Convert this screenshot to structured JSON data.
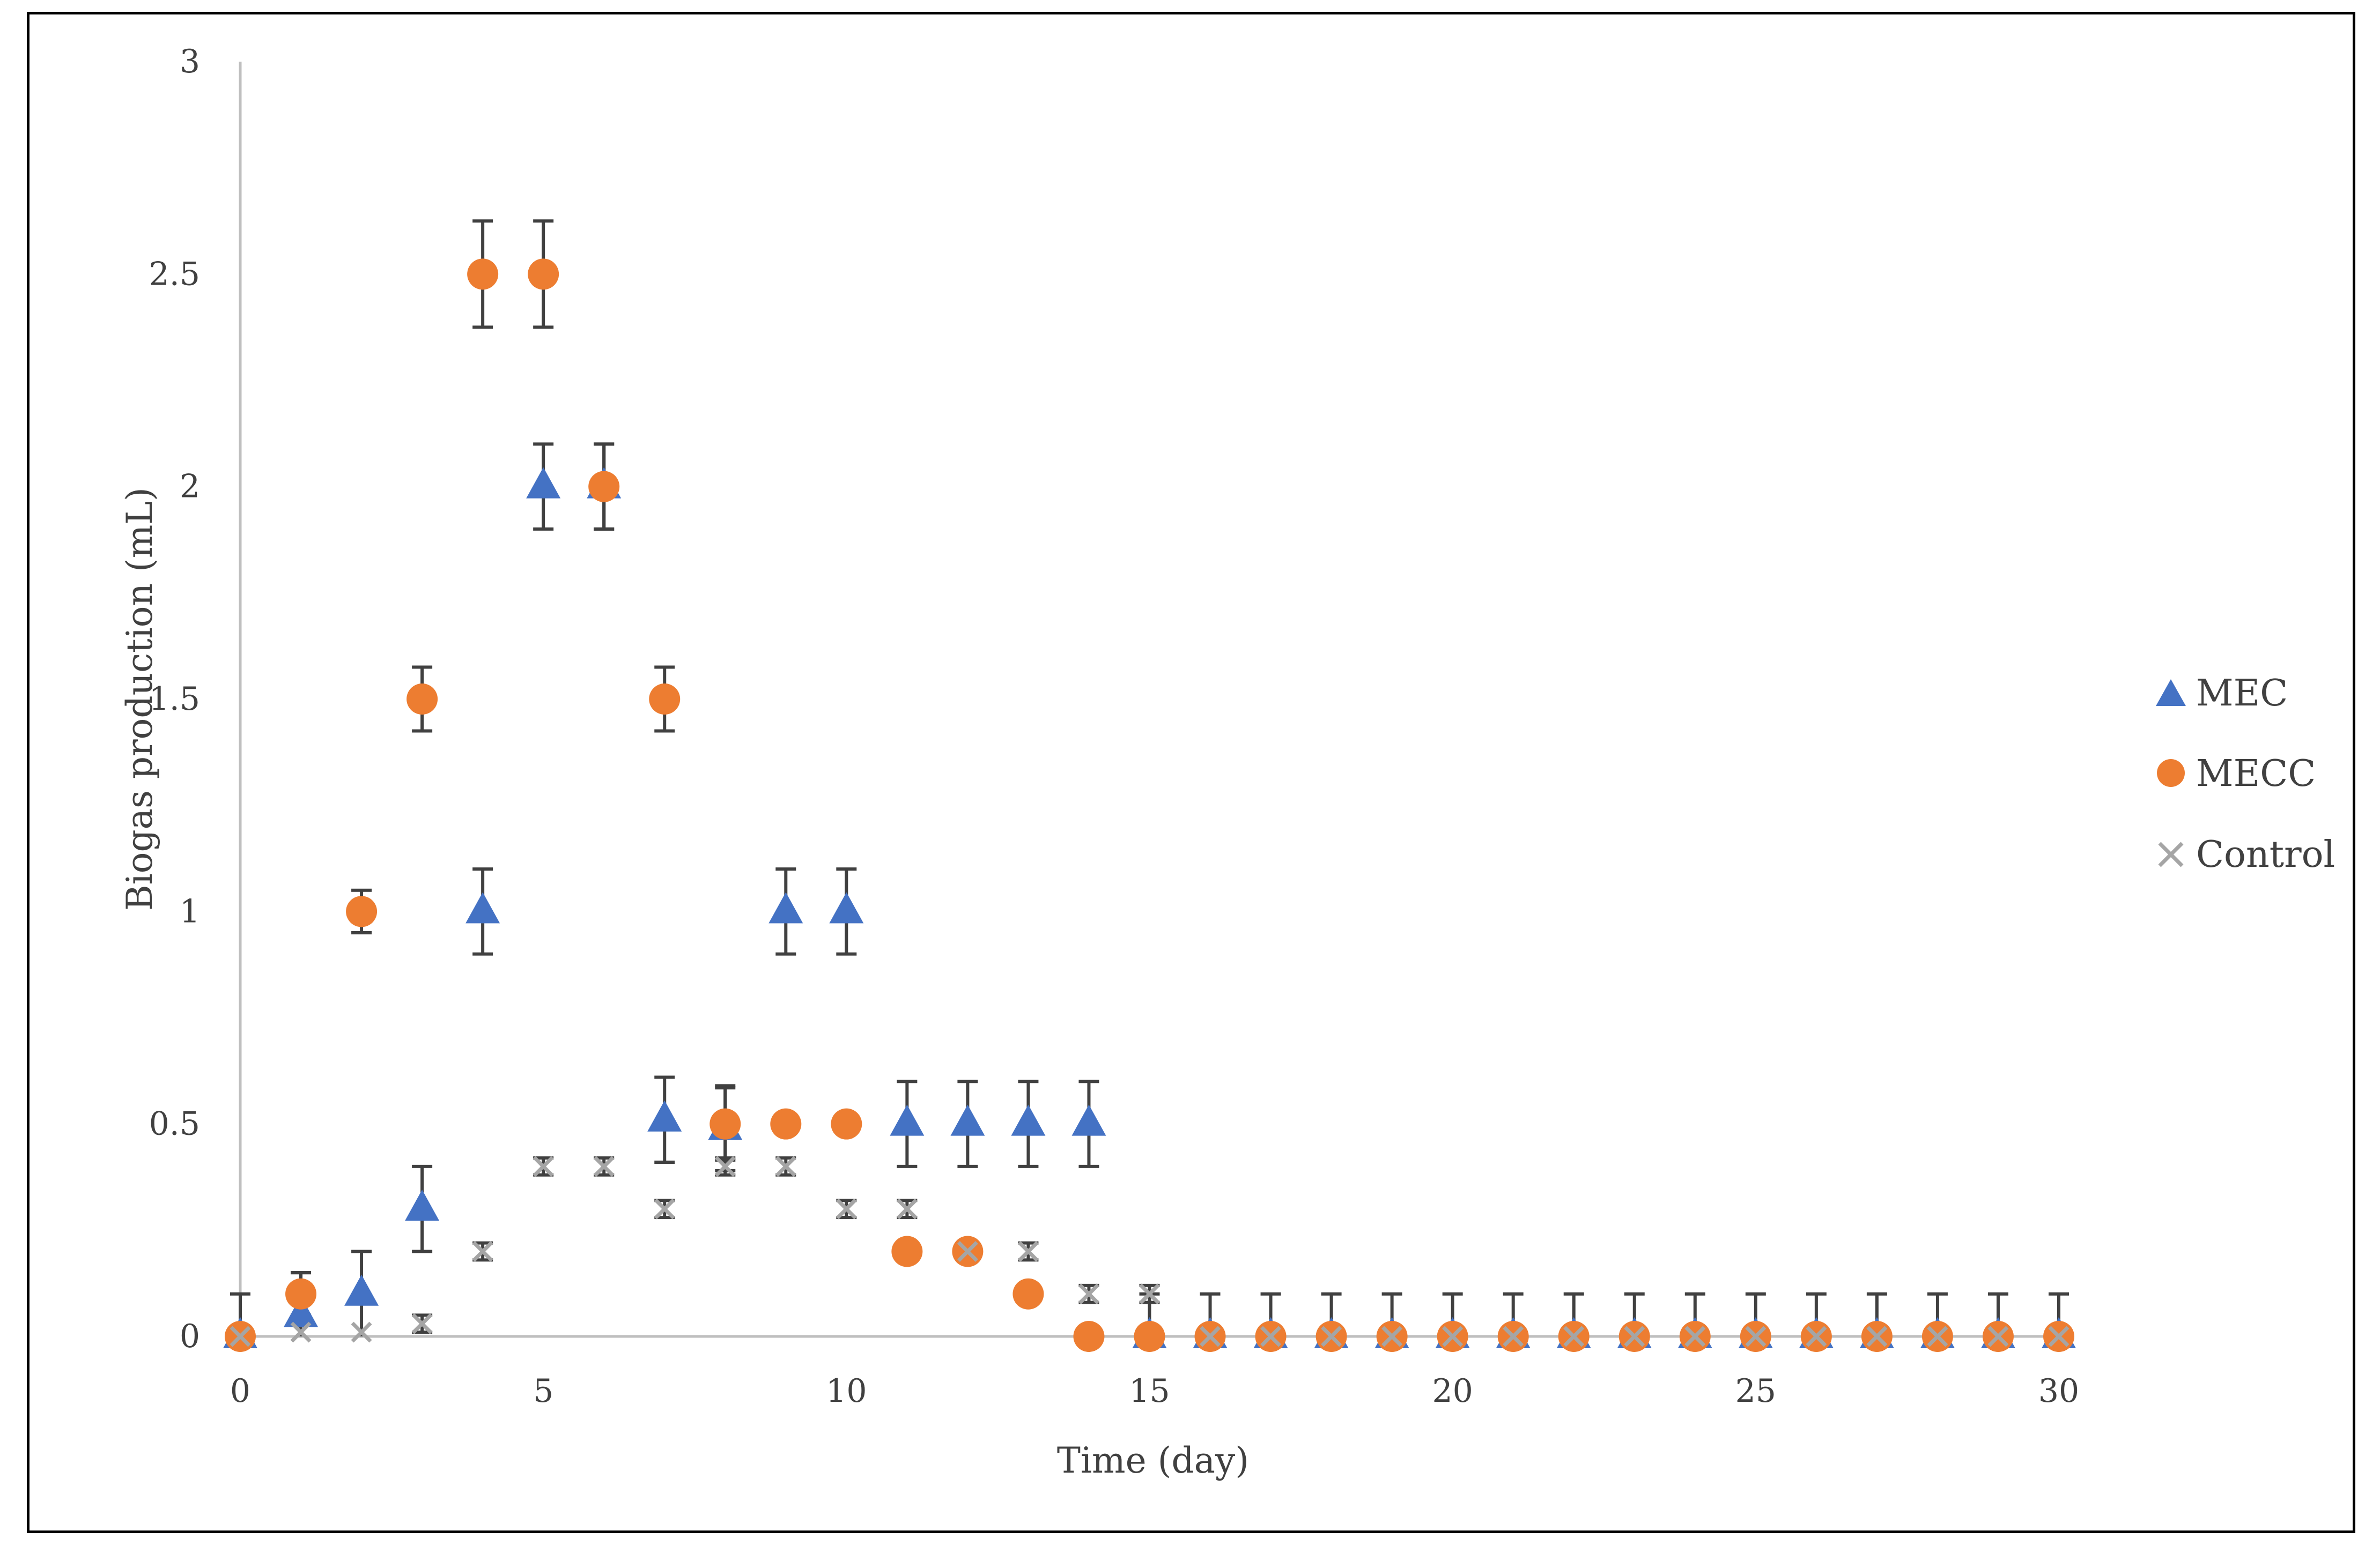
{
  "chart_data": {
    "type": "scatter",
    "title": "",
    "xlabel": "Time (day)",
    "ylabel": "Biogas production (mL)",
    "xlim": [
      0,
      30
    ],
    "ylim": [
      0,
      3
    ],
    "x_ticks": [
      0,
      5,
      10,
      15,
      20,
      25,
      30
    ],
    "y_ticks": [
      0,
      0.5,
      1,
      1.5,
      2,
      2.5,
      3
    ],
    "y_tick_labels": [
      "0",
      "0.5",
      "1",
      "1.5",
      "2",
      "2.5",
      "3"
    ],
    "grid": false,
    "legend_position": "right",
    "colors": {
      "MEC": "#4472C4",
      "MECC": "#ED7D31",
      "Control": "#A5A5A5",
      "axis": "#BFBFBF",
      "error_bar": "#404040"
    },
    "series": [
      {
        "name": "MEC",
        "marker": "triangle",
        "x": [
          0,
          1,
          2,
          3,
          4,
          5,
          6,
          7,
          8,
          9,
          10,
          11,
          12,
          13,
          14,
          15,
          16,
          17,
          18,
          19,
          20,
          21,
          22,
          23,
          24,
          25,
          26,
          27,
          28,
          29,
          30
        ],
        "values": [
          0,
          0.05,
          0.1,
          0.3,
          1,
          2,
          2,
          0.51,
          0.49,
          1,
          1,
          0.5,
          0.5,
          0.5,
          0.5,
          0,
          0,
          0,
          0,
          0,
          0,
          0,
          0,
          0,
          0,
          0,
          0,
          0,
          0,
          0,
          0
        ],
        "error": [
          0.1,
          0.1,
          0.1,
          0.1,
          0.1,
          0.1,
          0.1,
          0.1,
          0.1,
          0.1,
          0.1,
          0.1,
          0.1,
          0.1,
          0.1,
          0.1,
          0.1,
          0.1,
          0.1,
          0.1,
          0.1,
          0.1,
          0.1,
          0.1,
          0.1,
          0.1,
          0.1,
          0.1,
          0.1,
          0.1,
          0.1
        ]
      },
      {
        "name": "MECC",
        "marker": "circle",
        "x": [
          0,
          1,
          2,
          3,
          4,
          5,
          6,
          7,
          8,
          9,
          10,
          11,
          12,
          13,
          14,
          15,
          16,
          17,
          18,
          19,
          20,
          21,
          22,
          23,
          24,
          25,
          26,
          27,
          28,
          29,
          30
        ],
        "values": [
          0,
          0.1,
          1,
          1.5,
          2.5,
          2.5,
          2,
          1.5,
          0.5,
          0.5,
          0.5,
          0.2,
          0.2,
          0.1,
          0,
          0,
          0,
          0,
          0,
          0,
          0,
          0,
          0,
          0,
          0,
          0,
          0,
          0,
          0,
          0,
          0
        ],
        "error": [
          0,
          0.05,
          0.05,
          0.075,
          0.125,
          0.125,
          0.1,
          0.075,
          0.085,
          0,
          0,
          0,
          0,
          0,
          0,
          0,
          0,
          0,
          0,
          0,
          0,
          0,
          0,
          0,
          0,
          0,
          0,
          0,
          0,
          0,
          0
        ]
      },
      {
        "name": "Control",
        "marker": "x",
        "x": [
          0,
          1,
          2,
          3,
          4,
          5,
          6,
          7,
          8,
          9,
          10,
          11,
          12,
          13,
          14,
          15,
          16,
          17,
          18,
          19,
          20,
          21,
          22,
          23,
          24,
          25,
          26,
          27,
          28,
          29,
          30
        ],
        "values": [
          0,
          0.01,
          0.01,
          0.03,
          0.2,
          0.4,
          0.4,
          0.3,
          0.4,
          0.4,
          0.3,
          0.3,
          0.2,
          0.2,
          0.1,
          0.1,
          0,
          0,
          0,
          0,
          0,
          0,
          0,
          0,
          0,
          0,
          0,
          0,
          0,
          0,
          0
        ],
        "error": [
          0,
          0,
          0,
          0.02,
          0.02,
          0.02,
          0.02,
          0.02,
          0.02,
          0.02,
          0.02,
          0.02,
          0.02,
          0.02,
          0.02,
          0.02,
          0,
          0,
          0,
          0,
          0,
          0,
          0,
          0,
          0,
          0,
          0,
          0,
          0,
          0,
          0
        ]
      }
    ]
  }
}
